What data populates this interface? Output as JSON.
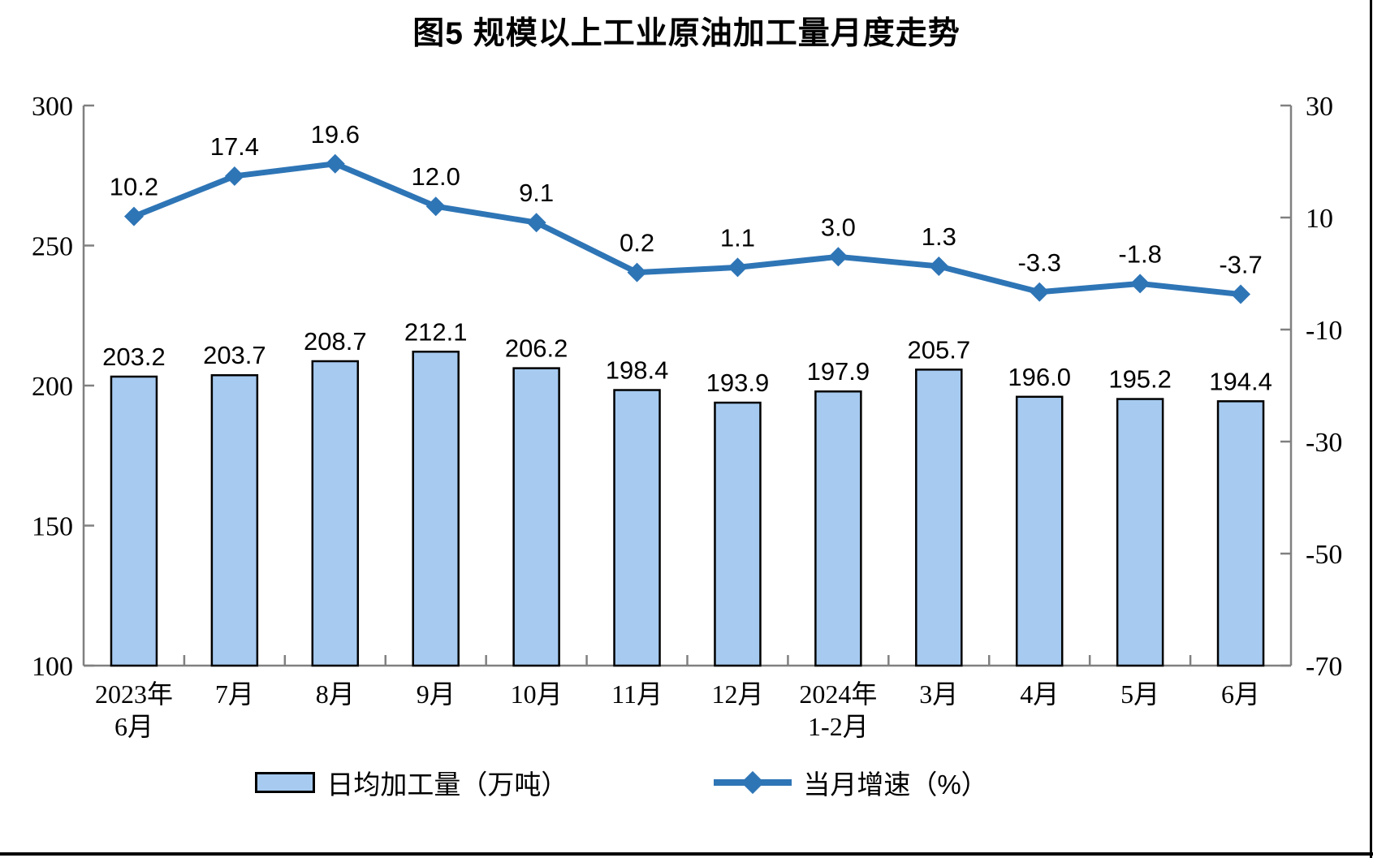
{
  "colors": {
    "bar_fill": "#A6CAF0",
    "bar_border": "#000000",
    "line": "#2E75B6",
    "axis": "#808080",
    "text": "#000000"
  },
  "chart_data": {
    "type": "bar+line",
    "title": "图5  规模以上工业原油加工量月度走势",
    "categories": [
      {
        "label": "2023年",
        "sublabel": "6月"
      },
      {
        "label": "7月",
        "sublabel": ""
      },
      {
        "label": "8月",
        "sublabel": ""
      },
      {
        "label": "9月",
        "sublabel": ""
      },
      {
        "label": "10月",
        "sublabel": ""
      },
      {
        "label": "11月",
        "sublabel": ""
      },
      {
        "label": "12月",
        "sublabel": ""
      },
      {
        "label": "2024年",
        "sublabel": "1-2月"
      },
      {
        "label": "3月",
        "sublabel": ""
      },
      {
        "label": "4月",
        "sublabel": ""
      },
      {
        "label": "5月",
        "sublabel": ""
      },
      {
        "label": "6月",
        "sublabel": ""
      }
    ],
    "series": [
      {
        "name": "日均加工量（万吨）",
        "type": "bar",
        "y_axis": "left",
        "values": [
          203.2,
          203.7,
          208.7,
          212.1,
          206.2,
          198.4,
          193.9,
          197.9,
          205.7,
          196.0,
          195.2,
          194.4
        ],
        "labels": [
          "203.2",
          "203.7",
          "208.7",
          "212.1",
          "206.2",
          "198.4",
          "193.9",
          "197.9",
          "205.7",
          "196.0",
          "195.2",
          "194.4"
        ]
      },
      {
        "name": "当月增速（%）",
        "type": "line",
        "y_axis": "right",
        "values": [
          10.2,
          17.4,
          19.6,
          12.0,
          9.1,
          0.2,
          1.1,
          3.0,
          1.3,
          -3.3,
          -1.8,
          -3.7
        ],
        "labels": [
          "10.2",
          "17.4",
          "19.6",
          "12.0",
          "9.1",
          "0.2",
          "1.1",
          "3.0",
          "1.3",
          "-3.3",
          "-1.8",
          "-3.7"
        ]
      }
    ],
    "left_axis": {
      "min": 100,
      "max": 300,
      "tick_step": 50,
      "tick_labels": [
        "100",
        "150",
        "200",
        "250",
        "300"
      ]
    },
    "right_axis": {
      "min": -70,
      "max": 30,
      "tick_step": 20,
      "tick_labels": [
        "-70",
        "-50",
        "-30",
        "-10",
        "10",
        "30"
      ]
    },
    "grid": false,
    "legend_position": "bottom"
  }
}
